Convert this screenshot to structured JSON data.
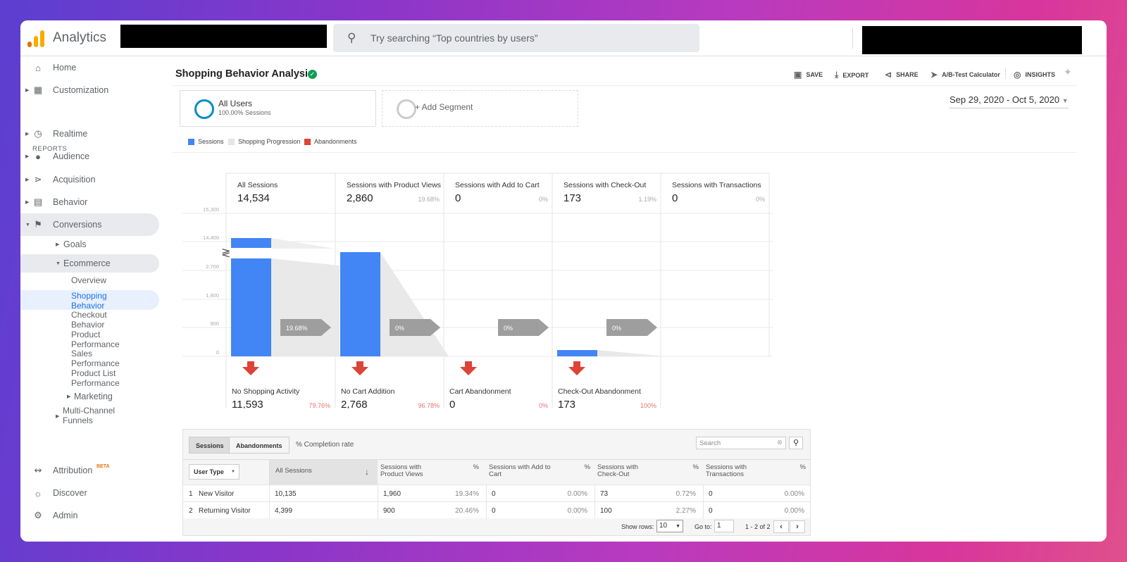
{
  "app": {
    "name": "Analytics",
    "search_placeholder": "Try searching “Top countries by users”"
  },
  "sidebar": {
    "home": "Home",
    "customization": "Customization",
    "reports_header": "REPORTS",
    "realtime": "Realtime",
    "audience": "Audience",
    "acquisition": "Acquisition",
    "behavior": "Behavior",
    "conversions": "Conversions",
    "goals": "Goals",
    "ecommerce": "Ecommerce",
    "overview": "Overview",
    "shopping_1": "Shopping",
    "shopping_2": "Behavior",
    "checkout_1": "Checkout",
    "checkout_2": "Behavior",
    "product_1": "Product",
    "product_2": "Performance",
    "sales_1": "Sales",
    "sales_2": "Performance",
    "plist_1": "Product List",
    "plist_2": "Performance",
    "marketing": "Marketing",
    "mcf_1": "Multi-Channel",
    "mcf_2": "Funnels",
    "attribution": "Attribution",
    "beta": "BETA",
    "discover": "Discover",
    "admin": "Admin"
  },
  "page": {
    "title": "Shopping Behavior Analysis"
  },
  "toolbar": {
    "save": "SAVE",
    "export": "EXPORT",
    "share": "SHARE",
    "abtest": "A/B-Test Calculator",
    "insights": "INSIGHTS"
  },
  "segments": {
    "all_users": "All Users",
    "all_users_sub": "100.00% Sessions",
    "add": "+ Add Segment"
  },
  "date_range": "Sep 29, 2020 - Oct 5, 2020",
  "legend": {
    "sessions": "Sessions",
    "progression": "Shopping Progression",
    "abandonments": "Abandonments"
  },
  "chart_data": {
    "type": "bar",
    "yticks": [
      "15,300",
      "14,400",
      "2,700",
      "1,800",
      "900",
      "0"
    ],
    "stages": [
      {
        "label": "All Sessions",
        "value": "14,534",
        "pct": "",
        "sessions": 14534
      },
      {
        "label": "Sessions with Product Views",
        "value": "2,860",
        "pct": "19.68%",
        "sessions": 2860
      },
      {
        "label": "Sessions with Add to Cart",
        "value": "0",
        "pct": "0%",
        "sessions": 0
      },
      {
        "label": "Sessions with Check-Out",
        "value": "173",
        "pct": "1.19%",
        "sessions": 173
      },
      {
        "label": "Sessions with Transactions",
        "value": "0",
        "pct": "0%",
        "sessions": 0
      }
    ],
    "progressions": [
      "19.68%",
      "0%",
      "0%",
      "0%"
    ],
    "abandonments": [
      {
        "label": "No Shopping Activity",
        "value": "11,593",
        "pct": "79.76%"
      },
      {
        "label": "No Cart Addition",
        "value": "2,768",
        "pct": "96.78%"
      },
      {
        "label": "Cart Abandonment",
        "value": "0",
        "pct": "0%"
      },
      {
        "label": "Check-Out Abandonment",
        "value": "173",
        "pct": "100%"
      }
    ]
  },
  "table": {
    "tab_sessions": "Sessions",
    "tab_abandonments": "Abandonments",
    "completion": "% Completion rate",
    "search_placeholder": "Search",
    "headers": [
      "User Type",
      "All Sessions",
      "Sessions with Product Views",
      "%",
      "Sessions with Add to Cart",
      "%",
      "Sessions with Check-Out",
      "%",
      "Sessions with Transactions",
      "%"
    ],
    "rows": [
      [
        "1",
        "New Visitor",
        "10,135",
        "1,960",
        "19.34%",
        "0",
        "0.00%",
        "73",
        "0.72%",
        "0",
        "0.00%"
      ],
      [
        "2",
        "Returning Visitor",
        "4,399",
        "900",
        "20.46%",
        "0",
        "0.00%",
        "100",
        "2.27%",
        "0",
        "0.00%"
      ]
    ],
    "show_rows_label": "Show rows:",
    "show_rows_value": "10",
    "goto_label": "Go to:",
    "goto_value": "1",
    "range": "1 - 2 of 2"
  }
}
